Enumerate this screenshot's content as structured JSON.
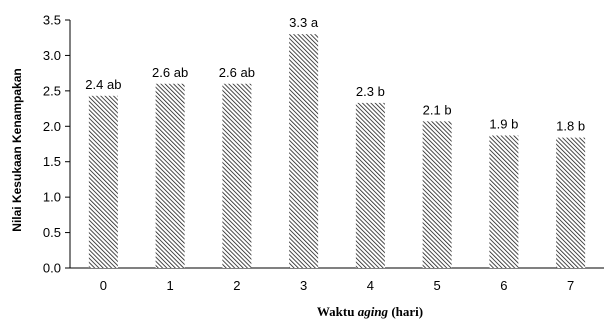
{
  "chart_data": {
    "type": "bar",
    "categories": [
      "0",
      "1",
      "2",
      "3",
      "4",
      "5",
      "6",
      "7"
    ],
    "values": [
      2.43,
      2.6,
      2.6,
      3.3,
      2.33,
      2.07,
      1.87,
      1.84
    ],
    "data_labels": [
      "2.4 ab",
      "2.6 ab",
      "2.6 ab",
      "3.3 a",
      "2.3 b",
      "2.1 b",
      "1.9 b",
      "1.8 b"
    ],
    "yticks": [
      "0.0",
      "0.5",
      "1.0",
      "1.5",
      "2.0",
      "2.5",
      "3.0",
      "3.5"
    ],
    "ylim": [
      0,
      3.5
    ],
    "ylabel": "Nilai Kesukaan Kenampakan",
    "xlabel_pre": "Waktu ",
    "xlabel_italic": "aging",
    "xlabel_post": " (hari)",
    "grid": false,
    "legend": "none",
    "bar_fill": "hatched-diagonal",
    "bar_color": "#000000"
  }
}
